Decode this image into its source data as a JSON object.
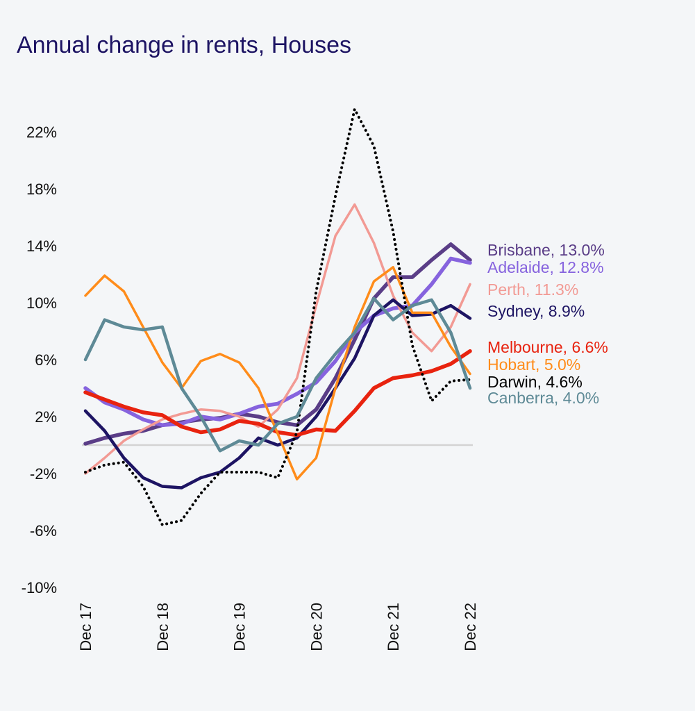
{
  "chart_data": {
    "type": "line",
    "title": "Annual change in rents, Houses",
    "xlabel": "",
    "ylabel": "",
    "ylim": [
      -10,
      24
    ],
    "yticks": [
      22,
      18,
      14,
      10,
      6,
      2,
      -2,
      -6,
      -10
    ],
    "ytick_labels": [
      "22%",
      "18%",
      "14%",
      "10%",
      "6%",
      "2%",
      "-2%",
      "-6%",
      "-10%"
    ],
    "xtick_labels": [
      "Dec 17",
      "Dec 18",
      "Dec 19",
      "Dec 20",
      "Dec 21",
      "Dec 22"
    ],
    "grid": false,
    "zero_line": true,
    "legend": "right (end-of-line labels)",
    "x": [
      "2017-12",
      "2018-03",
      "2018-06",
      "2018-09",
      "2018-12",
      "2019-03",
      "2019-06",
      "2019-09",
      "2019-12",
      "2020-03",
      "2020-06",
      "2020-09",
      "2020-12",
      "2021-03",
      "2021-06",
      "2021-09",
      "2021-12",
      "2022-03",
      "2022-06",
      "2022-09",
      "2022-12"
    ],
    "series": [
      {
        "name": "Brisbane",
        "label": "Brisbane, 13.0%",
        "color": "#5a3d87",
        "style": "solid",
        "values": [
          0.1,
          0.5,
          0.8,
          1.0,
          1.4,
          1.6,
          1.8,
          1.9,
          2.2,
          2.0,
          1.6,
          1.4,
          2.5,
          4.7,
          7.4,
          10.3,
          11.8,
          11.8,
          13.0,
          14.1,
          13.0
        ]
      },
      {
        "name": "Adelaide",
        "label": "Adelaide, 12.8%",
        "color": "#8663de",
        "style": "solid",
        "values": [
          4.0,
          3.0,
          2.5,
          1.8,
          1.4,
          1.5,
          2.0,
          1.8,
          2.2,
          2.7,
          2.9,
          3.6,
          4.4,
          5.9,
          7.9,
          9.1,
          9.6,
          9.8,
          11.3,
          13.1,
          12.8
        ]
      },
      {
        "name": "Perth",
        "label": "Perth, 11.3%",
        "color": "#f29a94",
        "style": "solid",
        "values": [
          -2.0,
          -0.9,
          0.3,
          1.1,
          1.8,
          2.2,
          2.5,
          2.4,
          2.0,
          1.3,
          2.5,
          4.7,
          9.8,
          14.7,
          16.9,
          14.2,
          10.5,
          7.9,
          6.6,
          8.3,
          11.3
        ]
      },
      {
        "name": "Sydney",
        "label": "Sydney, 8.9%",
        "color": "#1d1463",
        "style": "solid",
        "values": [
          2.4,
          1.0,
          -0.9,
          -2.3,
          -2.9,
          -3.0,
          -2.3,
          -1.9,
          -0.9,
          0.5,
          0.0,
          0.5,
          2.0,
          4.0,
          6.1,
          9.1,
          10.2,
          9.1,
          9.2,
          9.8,
          8.9
        ]
      },
      {
        "name": "Melbourne",
        "label": "Melbourne, 6.6%",
        "color": "#e8230f",
        "style": "solid",
        "values": [
          3.7,
          3.2,
          2.7,
          2.3,
          2.1,
          1.3,
          0.9,
          1.1,
          1.7,
          1.5,
          0.9,
          0.7,
          1.1,
          1.0,
          2.4,
          4.0,
          4.7,
          4.9,
          5.2,
          5.7,
          6.6
        ]
      },
      {
        "name": "Hobart",
        "label": "Hobart, 5.0%",
        "color": "#ff8c1a",
        "style": "solid",
        "values": [
          10.5,
          11.9,
          10.8,
          8.3,
          5.8,
          4.0,
          5.9,
          6.4,
          5.8,
          4.0,
          0.8,
          -2.4,
          -0.9,
          4.0,
          8.3,
          11.5,
          12.5,
          9.3,
          9.3,
          6.9,
          5.0
        ]
      },
      {
        "name": "Darwin",
        "label": "Darwin, 4.6%",
        "color": "#000000",
        "style": "dotted",
        "values": [
          -1.9,
          -1.4,
          -1.2,
          -2.9,
          -5.6,
          -5.3,
          -3.4,
          -1.9,
          -1.9,
          -1.9,
          -2.3,
          0.9,
          10.8,
          17.5,
          23.6,
          21.0,
          15.0,
          7.0,
          3.1,
          4.5,
          4.6
        ]
      },
      {
        "name": "Canberra",
        "label": "Canberra, 4.0%",
        "color": "#5e8a96",
        "style": "solid",
        "values": [
          6.0,
          8.8,
          8.3,
          8.1,
          8.3,
          4.0,
          2.0,
          -0.4,
          0.3,
          0.0,
          1.5,
          2.0,
          4.7,
          6.4,
          7.9,
          10.3,
          8.8,
          9.8,
          10.2,
          7.9,
          4.0
        ]
      }
    ]
  }
}
